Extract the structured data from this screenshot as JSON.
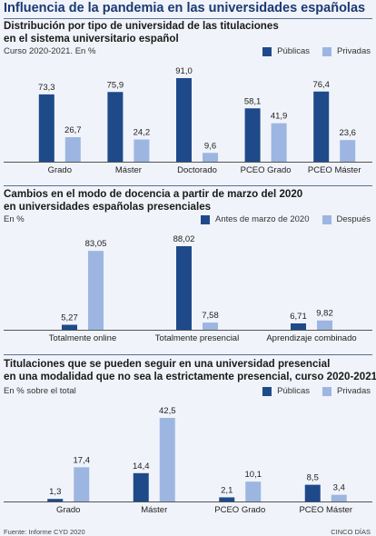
{
  "title": "Influencia de la pandemia en las universidades españolas",
  "colors": {
    "dark": "#1e4a8a",
    "light": "#9db6e1",
    "axis": "#555555",
    "title": "#1b3a73"
  },
  "chart_data": [
    {
      "type": "bar",
      "title_lines": [
        "Distribución por tipo de universidad de las titulaciones",
        "en el sistema universitario español"
      ],
      "subtitle": "Curso 2020-2021. En %",
      "categories": [
        "Grado",
        "Máster",
        "Doctorado",
        "PCEO Grado",
        "PCEO Máster"
      ],
      "series": [
        {
          "name": "Públicas",
          "values": [
            73.3,
            75.9,
            91.0,
            58.1,
            76.4
          ],
          "labels": [
            "73,3",
            "75,9",
            "91,0",
            "58,1",
            "76,4"
          ]
        },
        {
          "name": "Privadas",
          "values": [
            26.7,
            24.2,
            9.6,
            41.9,
            23.6
          ],
          "labels": [
            "26,7",
            "24,2",
            "9,6",
            "41,9",
            "23,6"
          ]
        }
      ],
      "ylim": [
        0,
        91
      ]
    },
    {
      "type": "bar",
      "title_lines": [
        "Cambios en el modo de docencia a partir de marzo del 2020",
        "en universidades españolas presenciales"
      ],
      "subtitle": "En %",
      "categories": [
        "Totalmente online",
        "Totalmente presencial",
        "Aprendizaje combinado"
      ],
      "series": [
        {
          "name": "Antes de marzo de 2020",
          "values": [
            5.27,
            88.02,
            6.71
          ],
          "labels": [
            "5,27",
            "88,02",
            "6,71"
          ]
        },
        {
          "name": "Después",
          "values": [
            83.05,
            7.58,
            9.82
          ],
          "labels": [
            "83,05",
            "7,58",
            "9,82"
          ]
        }
      ],
      "ylim": [
        0,
        88.02
      ]
    },
    {
      "type": "bar",
      "title_lines": [
        "Titulaciones que se pueden seguir en una universidad presencial",
        "en una modalidad que no sea la estrictamente presencial, curso 2020-2021"
      ],
      "subtitle": "En % sobre el total",
      "categories": [
        "Grado",
        "Máster",
        "PCEO Grado",
        "PCEO Máster"
      ],
      "series": [
        {
          "name": "Públicas",
          "values": [
            1.3,
            14.4,
            2.1,
            8.5
          ],
          "labels": [
            "1,3",
            "14,4",
            "2,1",
            "8,5"
          ]
        },
        {
          "name": "Privadas",
          "values": [
            17.4,
            42.5,
            10.1,
            3.4
          ],
          "labels": [
            "17,4",
            "42,5",
            "10,1",
            "3,4"
          ]
        }
      ],
      "ylim": [
        0,
        42.5
      ]
    }
  ],
  "footer": {
    "source": "Fuente: Informe CYD 2020",
    "credit": "CINCO DÍAS"
  }
}
